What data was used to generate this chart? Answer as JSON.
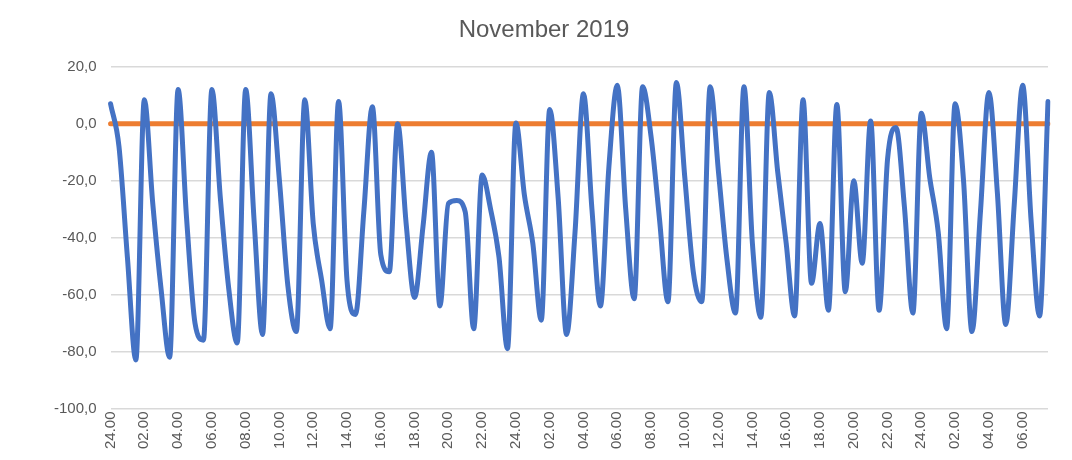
{
  "chart_data": {
    "type": "line",
    "title": "November 2019",
    "categories": [
      "24.00",
      null,
      null,
      null,
      "02.00",
      null,
      null,
      null,
      "04.00",
      null,
      null,
      null,
      "06.00",
      null,
      null,
      null,
      "08.00",
      null,
      null,
      null,
      "10.00",
      null,
      null,
      null,
      "12.00",
      null,
      null,
      null,
      "14.00",
      null,
      null,
      null,
      "16.00",
      null,
      null,
      null,
      "18.00",
      null,
      null,
      null,
      "20.00",
      null,
      null,
      null,
      "22.00",
      null,
      null,
      null,
      "24.00",
      null,
      null,
      null,
      "02.00",
      null,
      null,
      null,
      "04.00",
      null,
      null,
      null,
      "06.00",
      null,
      null,
      null,
      "08.00",
      null,
      null,
      null,
      "10.00",
      null,
      null,
      null,
      "12.00",
      null,
      null,
      null,
      "14.00",
      null,
      null,
      null,
      "16.00",
      null,
      null,
      null,
      "18.00",
      null,
      null,
      null,
      "20.00",
      null,
      null,
      null,
      "22.00",
      null,
      null,
      null,
      "24.00",
      null,
      null,
      null,
      "02.00",
      null,
      null,
      null,
      "04.00",
      null,
      null,
      null,
      "06.00",
      null,
      null,
      null
    ],
    "series": [
      {
        "color": "#4472c4",
        "values": [
          7,
          -8,
          -47,
          -83,
          8.4,
          -28,
          -58.5,
          -82,
          12,
          -33,
          -70,
          -76,
          12,
          -26,
          -58,
          -77,
          12,
          -34,
          -74,
          10.5,
          -20,
          -57,
          -73,
          8.4,
          -35,
          -55,
          -72,
          7.8,
          -55,
          -67,
          -30.5,
          6,
          -46,
          -52,
          0,
          -35,
          -61,
          -36,
          -10,
          -64,
          -28,
          -27,
          -31,
          -72,
          -18,
          -30,
          -47,
          -79,
          0.3,
          -25,
          -42,
          -69,
          5,
          -26,
          -74,
          -38,
          10.5,
          -30,
          -64,
          -15.5,
          13.5,
          -30,
          -61.5,
          13,
          -4.5,
          -33.5,
          -62.5,
          14.5,
          -19,
          -52,
          -62.5,
          13,
          -17.5,
          -48,
          -66.5,
          13,
          -42,
          -68,
          11,
          -17,
          -42,
          -67.5,
          8.4,
          -56,
          -35,
          -65.5,
          6.8,
          -59,
          -20,
          -49,
          1,
          -65.5,
          -12.5,
          -1.3,
          -29.2,
          -66.5,
          3.7,
          -19,
          -38,
          -72,
          7,
          -20,
          -73,
          -31,
          11,
          -24,
          -70.5,
          -28.5,
          13.5,
          -34,
          -67.5,
          7.8
        ]
      },
      {
        "color": "#ed7d31",
        "values": [
          0,
          0,
          0,
          0,
          0,
          0,
          0,
          0,
          0,
          0,
          0,
          0,
          0,
          0,
          0,
          0,
          0,
          0,
          0,
          0,
          0,
          0,
          0,
          0,
          0,
          0,
          0,
          0,
          0,
          0,
          0,
          0,
          0,
          0,
          0,
          0,
          0,
          0,
          0,
          0,
          0,
          0,
          0,
          0,
          0,
          0,
          0,
          0,
          0,
          0,
          0,
          0,
          0,
          0,
          0,
          0,
          0,
          0,
          0,
          0,
          0,
          0,
          0,
          0,
          0,
          0,
          0,
          0,
          0,
          0,
          0,
          0,
          0,
          0,
          0,
          0,
          0,
          0,
          0,
          0,
          0,
          0,
          0,
          0,
          0,
          0,
          0,
          0,
          0,
          0,
          0,
          0,
          0,
          0,
          0,
          0,
          0,
          0,
          0,
          0,
          0,
          0,
          0,
          0,
          0,
          0,
          0,
          0,
          0,
          0,
          0,
          0
        ]
      }
    ],
    "ylim": [
      -100,
      20
    ],
    "yticks": [
      {
        "value": 20,
        "label": "20,0"
      },
      {
        "value": 0,
        "label": "0,0"
      },
      {
        "value": -20,
        "label": "-20,0"
      },
      {
        "value": -40,
        "label": "-40,0"
      },
      {
        "value": -60,
        "label": "-60,0"
      },
      {
        "value": -80,
        "label": "-80,0"
      },
      {
        "value": -100,
        "label": "-100,0"
      }
    ],
    "grid": "y",
    "legend": false,
    "marker": "none",
    "line_style": "solid"
  }
}
